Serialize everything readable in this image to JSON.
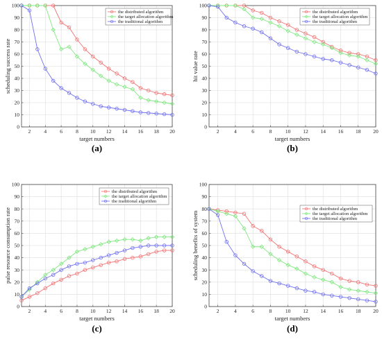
{
  "colors": {
    "distributed": "#f27272",
    "target": "#7ee87e",
    "traditional": "#6f6ff0"
  },
  "chart_data": [
    {
      "type": "line",
      "label": "(a)",
      "xlabel": "target numbers",
      "ylabel": "scheduling success rate",
      "xlim": [
        1,
        20
      ],
      "ylim": [
        0,
        100
      ],
      "xticks": [
        2,
        4,
        6,
        8,
        10,
        12,
        14,
        16,
        18,
        20
      ],
      "yticks": [
        0,
        10,
        20,
        30,
        40,
        50,
        60,
        70,
        80,
        90,
        100
      ],
      "grid": true,
      "legend": "top-right",
      "x": [
        1,
        2,
        3,
        4,
        5,
        6,
        7,
        8,
        9,
        10,
        11,
        12,
        13,
        14,
        15,
        16,
        17,
        18,
        19,
        20
      ],
      "series": [
        {
          "name": "the distributed algorithm",
          "color": "#f27272",
          "marker": "circle",
          "values": [
            100,
            100,
            100,
            100,
            100,
            86,
            82,
            72,
            64,
            58,
            53,
            48,
            44,
            40,
            37,
            32,
            30,
            28,
            27,
            26
          ]
        },
        {
          "name": "the target allocation algorithm",
          "color": "#7ee87e",
          "marker": "diamond",
          "values": [
            100,
            100,
            100,
            100,
            80,
            64,
            66,
            58,
            52,
            47,
            42,
            38,
            35,
            33,
            31,
            24,
            22,
            21,
            20,
            19
          ]
        },
        {
          "name": "the traditional algorithm",
          "color": "#6f6ff0",
          "marker": "circle",
          "values": [
            100,
            96,
            64,
            48,
            38,
            32,
            28,
            24,
            21,
            19,
            17,
            16,
            15,
            14,
            13,
            12,
            11.5,
            11,
            10.5,
            10
          ]
        }
      ]
    },
    {
      "type": "line",
      "label": "(b)",
      "xlabel": "target numbers",
      "ylabel": "hit value rate",
      "xlim": [
        1,
        20
      ],
      "ylim": [
        0,
        100
      ],
      "xticks": [
        2,
        4,
        6,
        8,
        10,
        12,
        14,
        16,
        18,
        20
      ],
      "yticks": [
        0,
        10,
        20,
        30,
        40,
        50,
        60,
        70,
        80,
        90,
        100
      ],
      "grid": true,
      "legend": "top-right",
      "x": [
        1,
        2,
        3,
        4,
        5,
        6,
        7,
        8,
        9,
        10,
        11,
        12,
        13,
        14,
        15,
        16,
        17,
        18,
        19,
        20
      ],
      "series": [
        {
          "name": "the distributed algorithm",
          "color": "#f27272",
          "marker": "circle",
          "values": [
            100,
            100,
            100,
            100,
            100,
            96,
            94,
            90,
            87,
            84,
            80,
            77,
            74,
            70,
            66,
            63,
            61,
            60,
            58,
            55
          ]
        },
        {
          "name": "the target allocation algorithm",
          "color": "#7ee87e",
          "marker": "diamond",
          "values": [
            100,
            100,
            100,
            100,
            97,
            90,
            89,
            86,
            83,
            79,
            76,
            73,
            70,
            68,
            65,
            61,
            59,
            58,
            55,
            52
          ]
        },
        {
          "name": "the traditional algorithm",
          "color": "#6f6ff0",
          "marker": "circle",
          "values": [
            100,
            99,
            90,
            86,
            83,
            81,
            78,
            73,
            68,
            65,
            62,
            60,
            58,
            56,
            55,
            53,
            51,
            49,
            47,
            44
          ]
        }
      ]
    },
    {
      "type": "line",
      "label": "(c)",
      "xlabel": "target numbers",
      "ylabel": "pulse resource consumption rate",
      "xlim": [
        1,
        20
      ],
      "ylim": [
        0,
        100
      ],
      "xticks": [
        2,
        4,
        6,
        8,
        10,
        12,
        14,
        16,
        18,
        20
      ],
      "yticks": [
        0,
        10,
        20,
        30,
        40,
        50,
        60,
        70,
        80,
        90,
        100
      ],
      "grid": true,
      "legend": "top-right",
      "x": [
        1,
        2,
        3,
        4,
        5,
        6,
        7,
        8,
        9,
        10,
        11,
        12,
        13,
        14,
        15,
        16,
        17,
        18,
        19,
        20
      ],
      "series": [
        {
          "name": "the distributed algorithm",
          "color": "#f27272",
          "marker": "circle",
          "values": [
            5,
            8,
            11,
            15,
            19,
            22,
            25,
            27,
            30,
            32,
            34,
            36,
            37,
            39,
            40,
            41,
            43,
            45,
            46,
            46
          ]
        },
        {
          "name": "the target allocation algorithm",
          "color": "#7ee87e",
          "marker": "diamond",
          "values": [
            8,
            14,
            20,
            26,
            30,
            35,
            40,
            45,
            47,
            49,
            51,
            53,
            54,
            55,
            55,
            54,
            56,
            57,
            57,
            57
          ]
        },
        {
          "name": "the traditional algorithm",
          "color": "#6f6ff0",
          "marker": "circle",
          "values": [
            8,
            15,
            19,
            23,
            26,
            30,
            33,
            35,
            36,
            38,
            40,
            42,
            44,
            46,
            48,
            49,
            50,
            50,
            50,
            50
          ]
        }
      ]
    },
    {
      "type": "line",
      "label": "(d)",
      "xlabel": "target numbers",
      "ylabel": "scheduling benefits of system",
      "xlim": [
        1,
        20
      ],
      "ylim": [
        0,
        100
      ],
      "xticks": [
        2,
        4,
        6,
        8,
        10,
        12,
        14,
        16,
        18,
        20
      ],
      "yticks": [
        0,
        10,
        20,
        30,
        40,
        50,
        60,
        70,
        80,
        90,
        100
      ],
      "grid": true,
      "legend": "top-right",
      "x": [
        1,
        2,
        3,
        4,
        5,
        6,
        7,
        8,
        9,
        10,
        11,
        12,
        13,
        14,
        15,
        16,
        17,
        18,
        19,
        20
      ],
      "series": [
        {
          "name": "the distributed algorithm",
          "color": "#f27272",
          "marker": "circle",
          "values": [
            80,
            79,
            78,
            77,
            76,
            66,
            62,
            55,
            49,
            45,
            41,
            37,
            33,
            30,
            27,
            23,
            21,
            20,
            18,
            17
          ]
        },
        {
          "name": "the target allocation algorithm",
          "color": "#7ee87e",
          "marker": "diamond",
          "values": [
            80,
            78,
            76,
            74,
            64,
            49,
            49,
            43,
            38,
            34,
            31,
            27,
            24,
            22,
            20,
            16,
            14,
            13,
            12,
            11
          ]
        },
        {
          "name": "the traditional algorithm",
          "color": "#6f6ff0",
          "marker": "circle",
          "values": [
            80,
            75,
            53,
            42,
            35,
            29,
            25,
            21,
            19,
            17,
            15,
            13,
            12,
            10,
            9,
            8,
            7,
            6,
            5,
            4
          ]
        }
      ]
    }
  ]
}
